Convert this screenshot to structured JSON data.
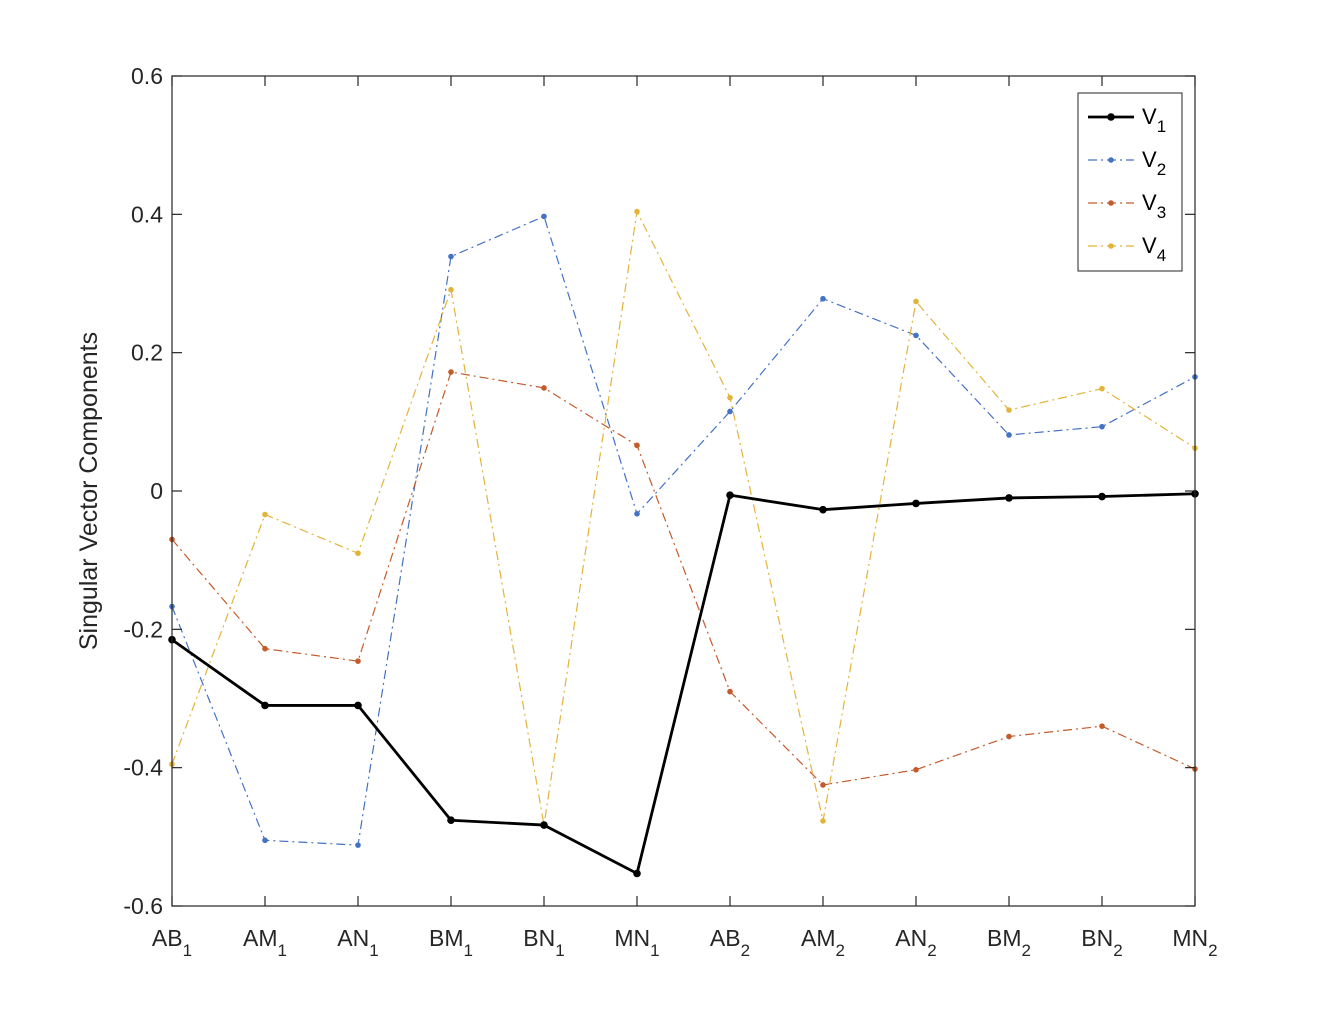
{
  "chart_data": {
    "type": "line",
    "title": "",
    "xlabel": "",
    "ylabel": "Singular Vector Components",
    "ylim": [
      -0.6,
      0.6
    ],
    "yticks": [
      "0.6",
      "0.4",
      "0.2",
      "0",
      "-0.2",
      "-0.4",
      "-0.6"
    ],
    "yticks_values": [
      0.6,
      0.4,
      0.2,
      0,
      -0.2,
      -0.4,
      -0.6
    ],
    "categories": [
      {
        "main": "AB",
        "sub": "1"
      },
      {
        "main": "AM",
        "sub": "1"
      },
      {
        "main": "AN",
        "sub": "1"
      },
      {
        "main": "BM",
        "sub": "1"
      },
      {
        "main": "BN",
        "sub": "1"
      },
      {
        "main": "MN",
        "sub": "1"
      },
      {
        "main": "AB",
        "sub": "2"
      },
      {
        "main": "AM",
        "sub": "2"
      },
      {
        "main": "AN",
        "sub": "2"
      },
      {
        "main": "BM",
        "sub": "2"
      },
      {
        "main": "BN",
        "sub": "2"
      },
      {
        "main": "MN",
        "sub": "2"
      }
    ],
    "legend_position": "top-right",
    "series": [
      {
        "name": "V",
        "sub": "1",
        "color": "#000000",
        "style": "solid",
        "values": [
          -0.215,
          -0.31,
          -0.31,
          -0.476,
          -0.483,
          -0.553,
          -0.006,
          -0.027,
          -0.018,
          -0.01,
          -0.008,
          -0.004
        ]
      },
      {
        "name": "V",
        "sub": "2",
        "color": "#4472c4",
        "style": "dashdot",
        "values": [
          -0.167,
          -0.505,
          -0.512,
          0.339,
          0.397,
          -0.033,
          0.115,
          0.278,
          0.225,
          0.081,
          0.093,
          0.165
        ]
      },
      {
        "name": "V",
        "sub": "3",
        "color": "#c55a2b",
        "style": "dashdot",
        "values": [
          -0.07,
          -0.228,
          -0.246,
          0.172,
          0.149,
          0.066,
          -0.29,
          -0.425,
          -0.403,
          -0.355,
          -0.34,
          -0.402
        ]
      },
      {
        "name": "V",
        "sub": "4",
        "color": "#e3b43a",
        "style": "dashdot",
        "values": [
          -0.395,
          -0.034,
          -0.09,
          0.291,
          -0.483,
          0.404,
          0.135,
          -0.477,
          0.274,
          0.117,
          0.148,
          0.062
        ]
      }
    ]
  }
}
